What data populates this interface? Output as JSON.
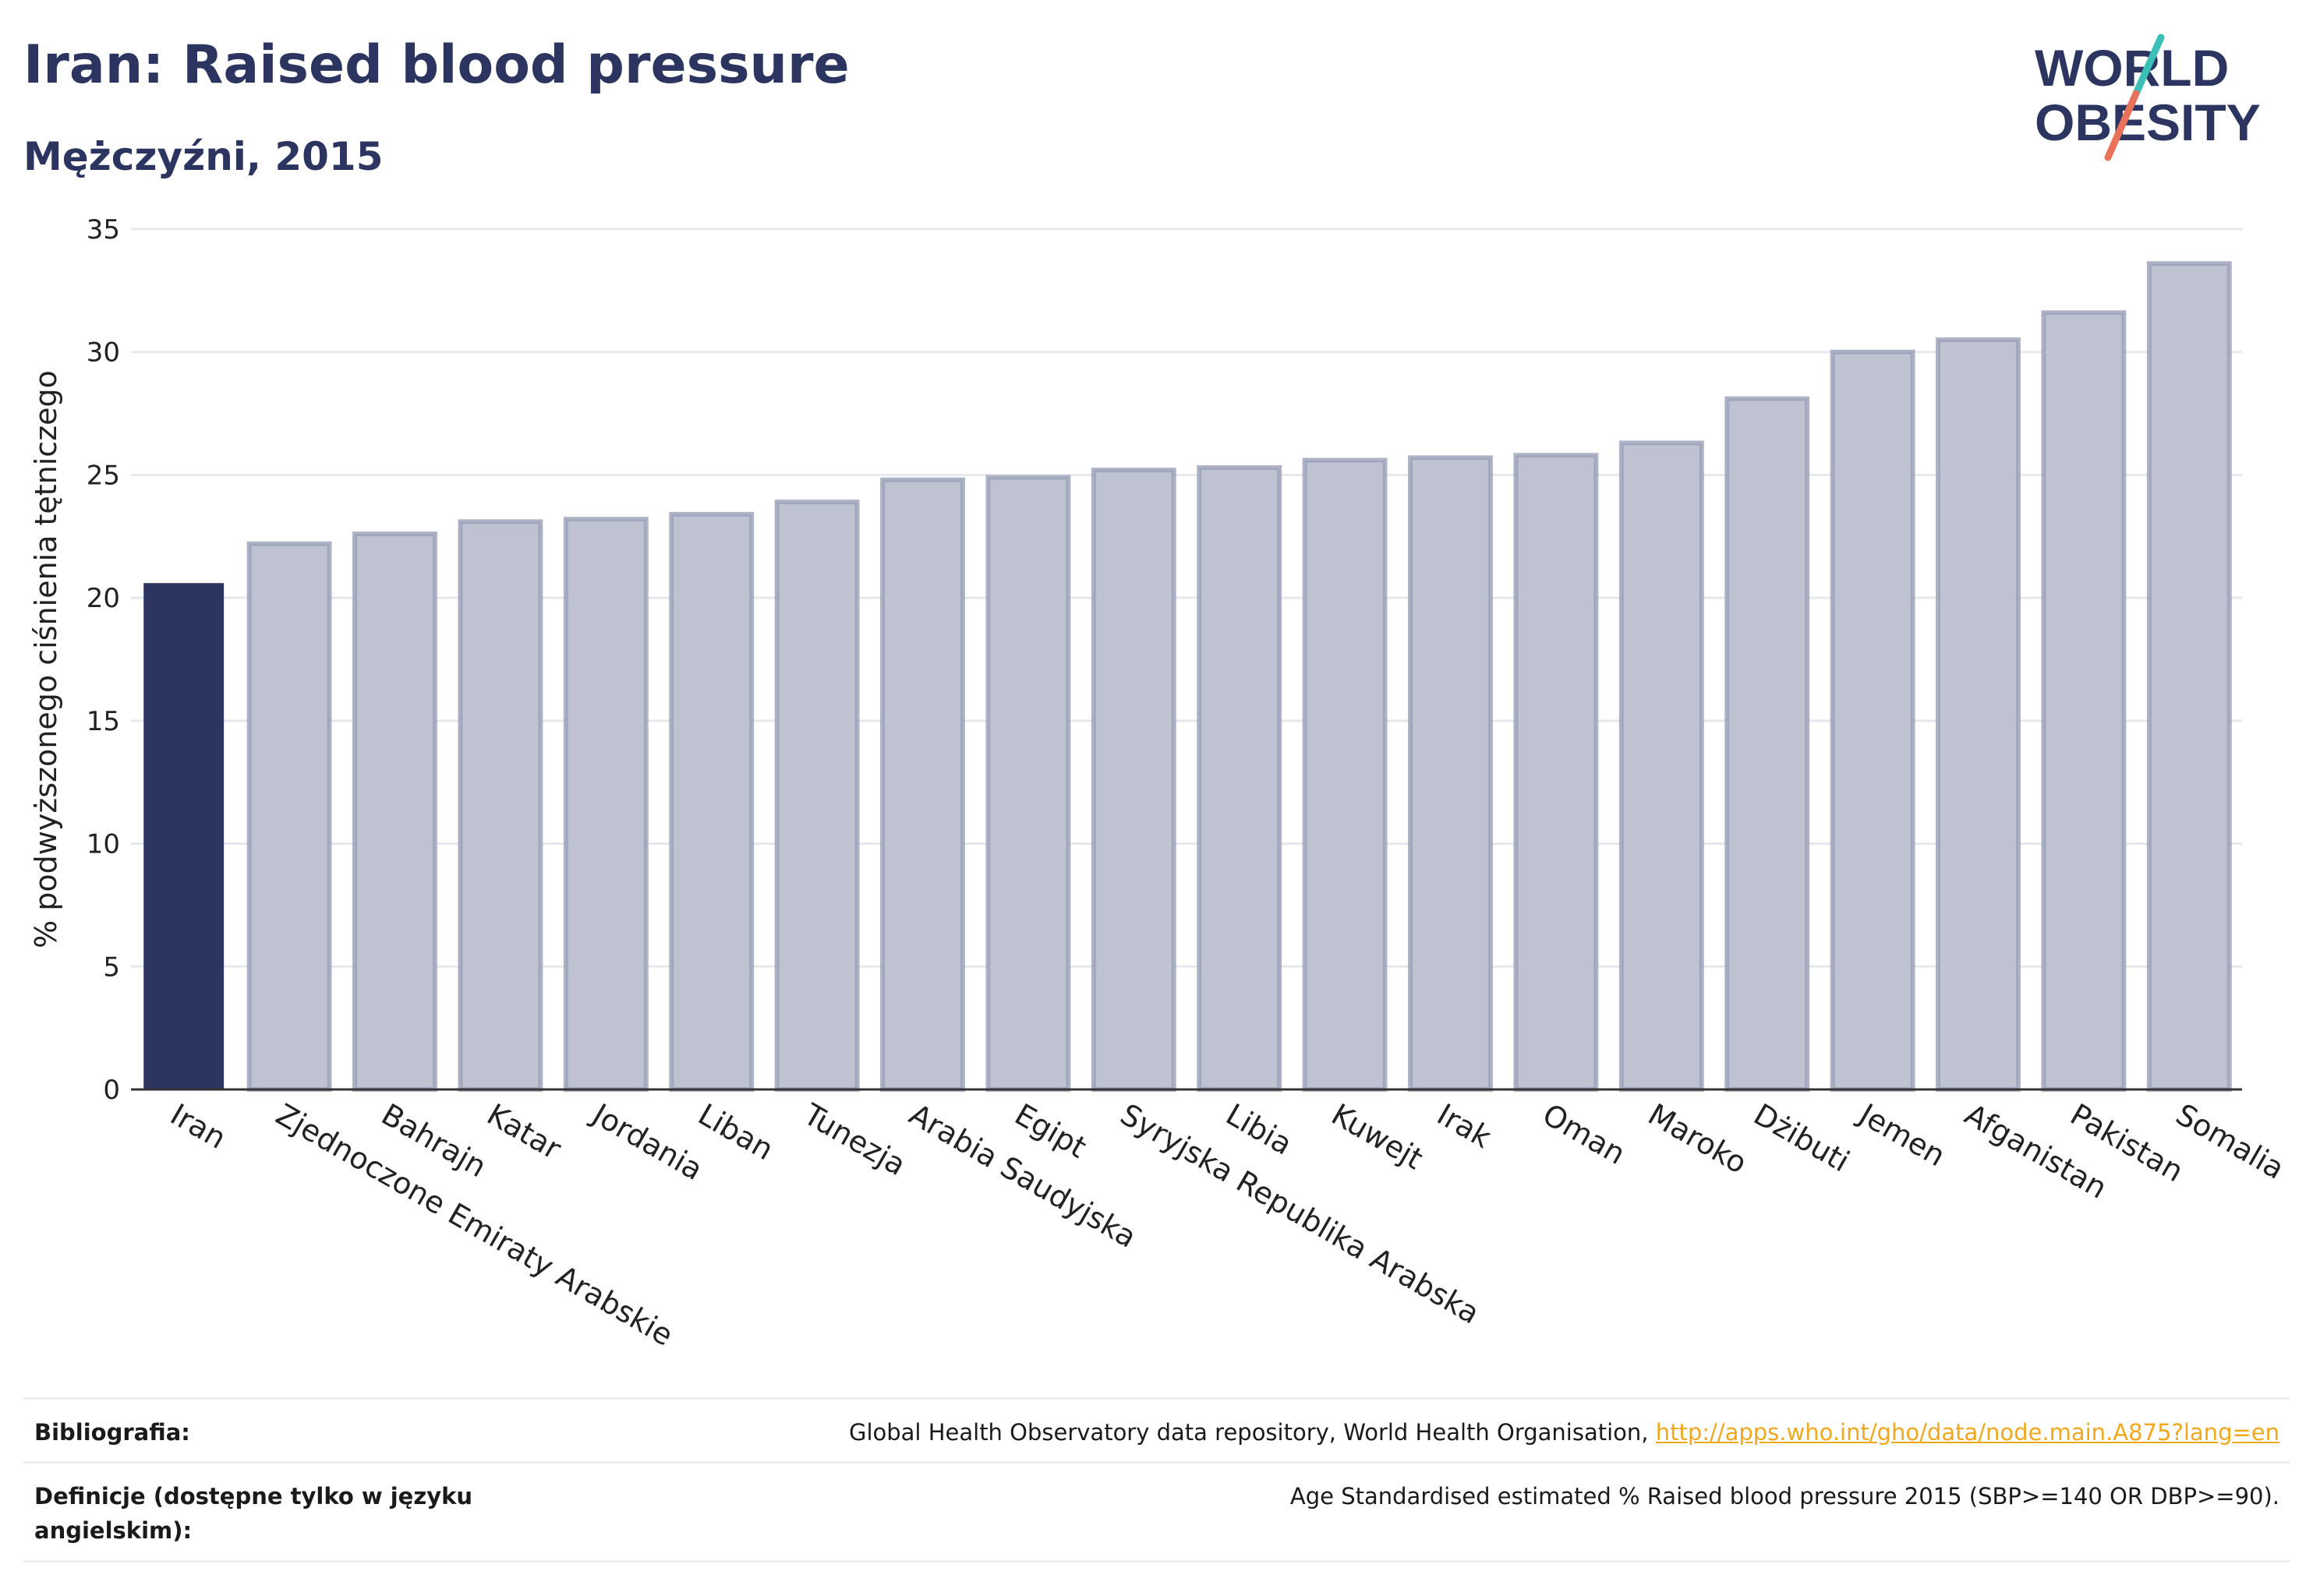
{
  "header": {
    "title": "Iran: Raised blood pressure",
    "subtitle": "Mężczyźni, 2015"
  },
  "logo": {
    "line1": "WORLD",
    "line2": "OBESITY",
    "slash_colors": [
      "#3bbfb6",
      "#e8735a"
    ],
    "text_color": "#2b3560"
  },
  "colors": {
    "highlight": "#2b3560",
    "bar_fill": "#bfc3d1",
    "bar_stroke": "#9aa0b8",
    "grid": "#e6e8ee"
  },
  "chart_data": {
    "type": "bar",
    "title": "",
    "xlabel": "",
    "ylabel": "% podwyższonego ciśnienia tętniczego",
    "ylim": [
      0,
      35
    ],
    "yticks": [
      0,
      5,
      10,
      15,
      20,
      25,
      30,
      35
    ],
    "grid": true,
    "highlight_index": 0,
    "categories": [
      "Iran",
      "Zjednoczone Emiraty Arabskie",
      "Bahrajn",
      "Katar",
      "Jordania",
      "Liban",
      "Tunezja",
      "Arabia Saudyjska",
      "Egipt",
      "Syryjska Republika Arabska",
      "Libia",
      "Kuwejt",
      "Irak",
      "Oman",
      "Maroko",
      "Dżibuti",
      "Jemen",
      "Afganistan",
      "Pakistan",
      "Somalia"
    ],
    "values": [
      20.6,
      22.2,
      22.6,
      23.1,
      23.2,
      23.4,
      23.9,
      24.8,
      24.9,
      25.2,
      25.3,
      25.6,
      25.7,
      25.8,
      26.3,
      28.1,
      30.0,
      30.5,
      31.6,
      33.6
    ]
  },
  "footer": {
    "bibliography_label": "Bibliografia:",
    "bibliography_text": "Global Health Observatory data repository, World Health Organisation, ",
    "bibliography_link": "http://apps.who.int/gho/data/node.main.A875?lang=en",
    "definitions_label": "Definicje (dostępne tylko w języku angielskim):",
    "definitions_text": "Age Standardised estimated % Raised blood pressure 2015 (SBP>=140 OR DBP>=90)."
  }
}
